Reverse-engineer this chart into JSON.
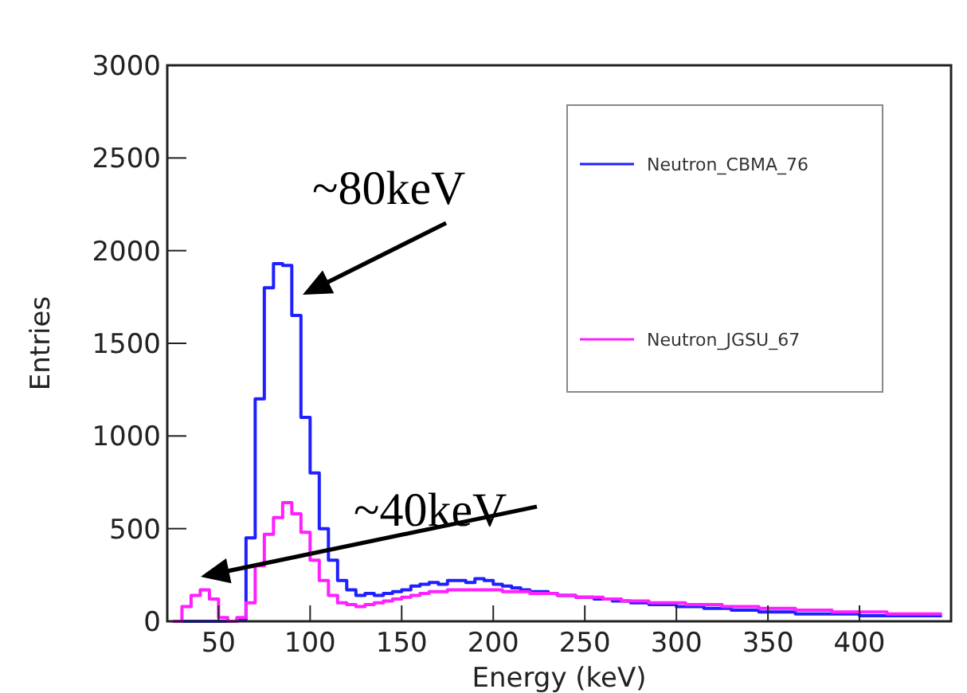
{
  "chart_data": {
    "type": "histogram",
    "xlabel": "Energy (keV)",
    "ylabel": "Entries",
    "xlim": [
      22,
      450
    ],
    "ylim": [
      0,
      3000
    ],
    "xticks": [
      50,
      100,
      150,
      200,
      250,
      300,
      350,
      400
    ],
    "yticks": [
      0,
      500,
      1000,
      1500,
      2000,
      2500,
      3000
    ],
    "bins": [
      25,
      30,
      35,
      40,
      45,
      50,
      55,
      60,
      65,
      70,
      75,
      80,
      85,
      90,
      95,
      100,
      105,
      110,
      115,
      120,
      125,
      130,
      135,
      140,
      145,
      150,
      155,
      160,
      165,
      170,
      175,
      180,
      185,
      190,
      195,
      200,
      205,
      210,
      215,
      220,
      225,
      230,
      235,
      240,
      245,
      250,
      255,
      260,
      265,
      270,
      275,
      280,
      285,
      290,
      295,
      300,
      305,
      310,
      315,
      320,
      325,
      330,
      335,
      340,
      345,
      350,
      355,
      360,
      365,
      370,
      375,
      380,
      385,
      390,
      395,
      400,
      405,
      410,
      415,
      420,
      425,
      430,
      435,
      440,
      445
    ],
    "series": [
      {
        "name": "Neutron_CBMA_76",
        "color": "#1f1fff",
        "values": [
          0,
          0,
          0,
          0,
          0,
          0,
          0,
          10,
          450,
          1200,
          1800,
          1930,
          1920,
          1650,
          1100,
          800,
          500,
          330,
          220,
          170,
          140,
          150,
          140,
          150,
          160,
          170,
          190,
          200,
          210,
          200,
          220,
          220,
          210,
          230,
          220,
          200,
          190,
          180,
          170,
          160,
          160,
          150,
          140,
          140,
          130,
          130,
          120,
          120,
          110,
          110,
          100,
          100,
          90,
          90,
          90,
          80,
          80,
          80,
          70,
          70,
          70,
          60,
          60,
          60,
          50,
          50,
          50,
          50,
          40,
          40,
          40,
          40,
          40,
          40,
          40,
          30,
          30,
          30,
          30,
          30,
          30,
          30,
          30,
          30
        ]
      },
      {
        "name": "Neutron_JGSU_67",
        "color": "#ff1fff",
        "values": [
          0,
          80,
          140,
          170,
          120,
          20,
          0,
          20,
          100,
          300,
          470,
          560,
          640,
          580,
          480,
          330,
          220,
          140,
          100,
          90,
          80,
          90,
          100,
          110,
          120,
          130,
          140,
          150,
          160,
          160,
          170,
          170,
          170,
          170,
          170,
          170,
          160,
          160,
          160,
          150,
          150,
          150,
          140,
          140,
          130,
          130,
          130,
          120,
          120,
          110,
          110,
          110,
          100,
          100,
          100,
          100,
          90,
          90,
          90,
          90,
          80,
          80,
          80,
          80,
          70,
          70,
          70,
          70,
          60,
          60,
          60,
          60,
          50,
          50,
          50,
          50,
          50,
          50,
          40,
          40,
          40,
          40,
          40,
          40
        ]
      }
    ],
    "legend": "top right",
    "grid": false,
    "annotations": [
      "~80keV",
      "~40keV"
    ]
  }
}
